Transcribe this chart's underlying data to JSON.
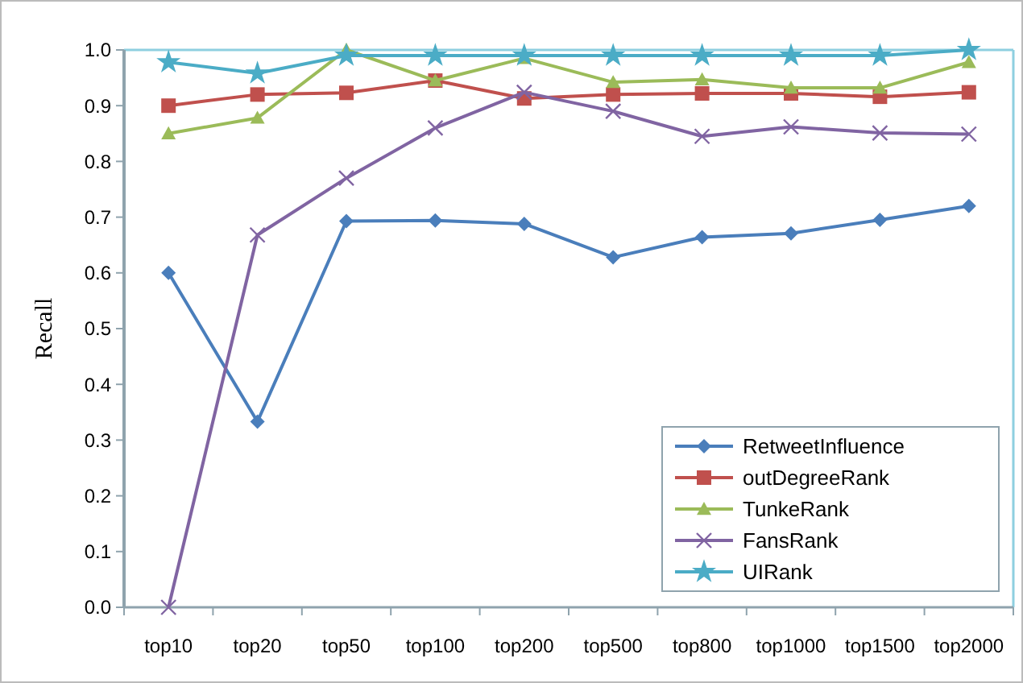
{
  "chart_data": {
    "type": "line",
    "ylabel": "Recall",
    "categories": [
      "top10",
      "top20",
      "top50",
      "top100",
      "top200",
      "top500",
      "top800",
      "top1000",
      "top1500",
      "top2000"
    ],
    "ylim": [
      0,
      1
    ],
    "yticks": [
      {
        "value": 0,
        "label": "0.0"
      },
      0.1,
      0.2,
      0.3,
      0.4,
      0.5,
      0.6,
      0.7,
      0.8,
      0.9,
      {
        "value": 1,
        "label": "1.0"
      }
    ],
    "grid": false,
    "legend": "bottom right",
    "series": [
      {
        "name": "RetweetInfluence",
        "color": "#4a7ebb",
        "marker": "diamond",
        "values": [
          0.6,
          0.333,
          0.693,
          0.694,
          0.688,
          0.628,
          0.664,
          0.671,
          0.695,
          0.72
        ]
      },
      {
        "name": "outDegreeRank",
        "color": "#c0504d",
        "marker": "square",
        "values": [
          0.9,
          0.92,
          0.923,
          0.945,
          0.913,
          0.92,
          0.922,
          0.922,
          0.916,
          0.924
        ]
      },
      {
        "name": "TunkeRank",
        "color": "#9bbb59",
        "marker": "triangle",
        "values": [
          0.85,
          0.878,
          1.0,
          0.945,
          0.985,
          0.942,
          0.947,
          0.932,
          0.932,
          0.978
        ]
      },
      {
        "name": "FansRank",
        "color": "#8064a2",
        "marker": "cross",
        "values": [
          0.0,
          0.668,
          0.77,
          0.86,
          0.924,
          0.89,
          0.845,
          0.862,
          0.851,
          0.849
        ]
      },
      {
        "name": "UIRank",
        "color": "#4bacc6",
        "marker": "star",
        "values": [
          0.978,
          0.958,
          0.99,
          0.99,
          0.99,
          0.99,
          0.99,
          0.99,
          0.99,
          1.0
        ]
      }
    ]
  }
}
